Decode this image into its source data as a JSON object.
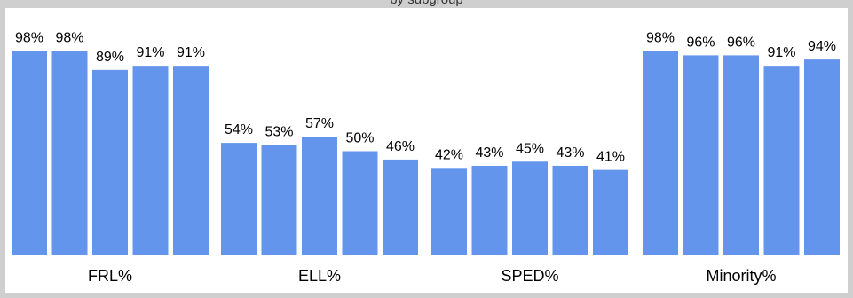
{
  "chart_data": {
    "type": "bar",
    "title": "by subgroup",
    "xlabel": "",
    "ylabel": "",
    "ylim": [
      0,
      100
    ],
    "grid": false,
    "legend": "none",
    "bar_color": "#6495ed",
    "groups": [
      {
        "category": "FRL%",
        "values": [
          98,
          98,
          89,
          91,
          91
        ],
        "labels": [
          "98%",
          "98%",
          "89%",
          "91%",
          "91%"
        ]
      },
      {
        "category": "ELL%",
        "values": [
          54,
          53,
          57,
          50,
          46
        ],
        "labels": [
          "54%",
          "53%",
          "57%",
          "50%",
          "46%"
        ]
      },
      {
        "category": "SPED%",
        "values": [
          42,
          43,
          45,
          43,
          41
        ],
        "labels": [
          "42%",
          "43%",
          "45%",
          "43%",
          "41%"
        ]
      },
      {
        "category": "Minority%",
        "values": [
          98,
          96,
          96,
          91,
          94
        ],
        "labels": [
          "98%",
          "96%",
          "96%",
          "91%",
          "94%"
        ]
      }
    ]
  }
}
